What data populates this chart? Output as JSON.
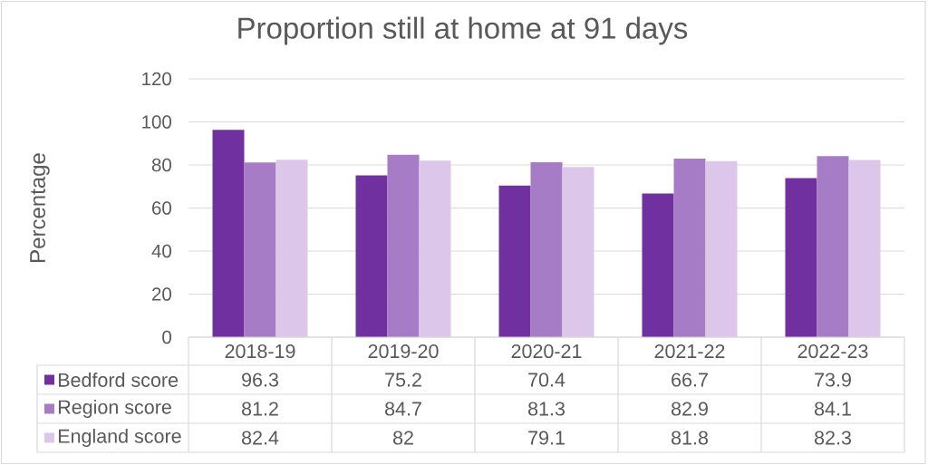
{
  "chart_data": {
    "type": "bar",
    "title": "Proportion still at home at 91 days",
    "ylabel": "Percentage",
    "categories": [
      "2018-19",
      "2019-20",
      "2020-21",
      "2021-22",
      "2022-23"
    ],
    "series": [
      {
        "name": "Bedford score",
        "color": "#7030a0",
        "values": [
          96.3,
          75.2,
          70.4,
          66.7,
          73.9
        ]
      },
      {
        "name": "Region score",
        "color": "#a57cc5",
        "values": [
          81.2,
          84.7,
          81.3,
          82.9,
          84.1
        ]
      },
      {
        "name": "England score",
        "color": "#dcc7ea",
        "values": [
          82.4,
          82,
          79.1,
          81.8,
          82.3
        ]
      }
    ],
    "ylim": [
      0,
      120
    ],
    "yticks": [
      0,
      20,
      40,
      60,
      80,
      100,
      120
    ],
    "grid": "y",
    "legend": "bottom",
    "data_labels": true
  }
}
